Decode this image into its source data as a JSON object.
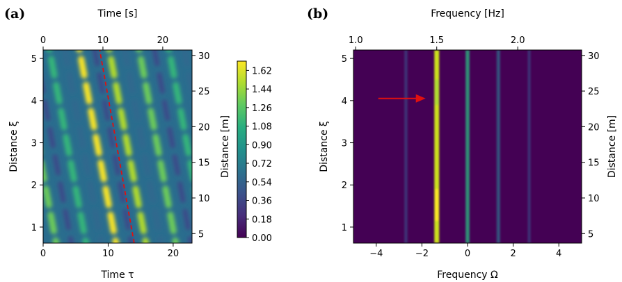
{
  "chart_data": [
    {
      "type": "heatmap",
      "panel_label": "(a)",
      "xlabel": "Time τ",
      "ylabel": "Distance ξ",
      "top_xlabel": "Time [s]",
      "right_ylabel": "Distance [m]",
      "xlim": [
        0,
        22.9
      ],
      "ylim": [
        0.62,
        5.2
      ],
      "x_ticks": [
        "0",
        "10",
        "20"
      ],
      "y_ticks": [
        "1",
        "2",
        "3",
        "4",
        "5"
      ],
      "top_ticks": [
        "0",
        "10",
        "20"
      ],
      "right_ticks": [
        "5",
        "10",
        "15",
        "20",
        "25",
        "30"
      ],
      "colormap": "viridis",
      "colorbar": {
        "range": [
          0,
          1.71
        ],
        "ticks": [
          "0.00",
          "0.18",
          "0.36",
          "0.54",
          "0.72",
          "0.90",
          "1.08",
          "1.26",
          "1.44",
          "1.62"
        ]
      },
      "annotation": {
        "type": "dashed-line",
        "color": "#e01010",
        "from": {
          "x": 14.0,
          "y": 0.62
        },
        "to": {
          "x": 8.7,
          "y": 5.2
        }
      }
    },
    {
      "type": "heatmap",
      "panel_label": "(b)",
      "xlabel": "Frequency Ω",
      "ylabel": "Distance ξ",
      "top_xlabel": "Frequency [Hz]",
      "right_ylabel": "Distance [m]",
      "xlim": [
        -5,
        5
      ],
      "ylim": [
        0.62,
        5.2
      ],
      "x_ticks": [
        "−4",
        "−2",
        "0",
        "2",
        "4"
      ],
      "y_ticks": [
        "1",
        "2",
        "3",
        "4",
        "5"
      ],
      "top_ticks": [
        "1.0",
        "1.5",
        "2.0"
      ],
      "right_ticks": [
        "5",
        "10",
        "15",
        "20",
        "25",
        "30"
      ],
      "colormap": "viridis",
      "bands": [
        {
          "omega": -1.35,
          "intensity": 1.0
        },
        {
          "omega": 0.0,
          "intensity": 0.55
        },
        {
          "omega": 1.35,
          "intensity": 0.35
        },
        {
          "omega": -2.7,
          "intensity": 0.15
        },
        {
          "omega": 2.7,
          "intensity": 0.07
        }
      ],
      "annotation": {
        "type": "arrow",
        "color": "#e01010",
        "points_to": {
          "x": -1.35,
          "y": 4.05
        }
      }
    }
  ]
}
